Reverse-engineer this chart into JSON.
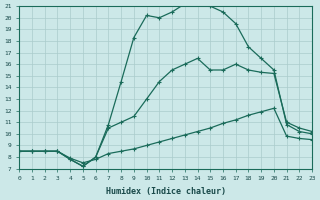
{
  "xlabel": "Humidex (Indice chaleur)",
  "bg_color": "#cce8e8",
  "grid_color": "#aacccc",
  "line_color": "#1a6b5a",
  "xlim": [
    0,
    23
  ],
  "ylim": [
    7,
    21
  ],
  "xtick_vals": [
    0,
    1,
    2,
    3,
    4,
    5,
    6,
    7,
    8,
    9,
    10,
    11,
    12,
    13,
    14,
    15,
    16,
    17,
    18,
    19,
    20,
    21,
    22,
    23
  ],
  "ytick_vals": [
    7,
    8,
    9,
    10,
    11,
    12,
    13,
    14,
    15,
    16,
    17,
    18,
    19,
    20,
    21
  ],
  "curve_upper_x": [
    0,
    1,
    2,
    3,
    4,
    5,
    6,
    7,
    8,
    9,
    10,
    11,
    12,
    13,
    14,
    15,
    16,
    17,
    18,
    19,
    20,
    21,
    22,
    23
  ],
  "curve_upper_y": [
    8.5,
    8.5,
    8.5,
    8.5,
    7.8,
    7.2,
    8.0,
    10.8,
    14.5,
    18.3,
    20.2,
    20.0,
    20.5,
    21.2,
    21.5,
    21.0,
    20.5,
    19.5,
    17.5,
    16.5,
    15.5,
    10.8,
    10.2,
    10.0
  ],
  "curve_mid_x": [
    0,
    1,
    2,
    3,
    4,
    5,
    6,
    7,
    8,
    9,
    10,
    11,
    12,
    13,
    14,
    15,
    16,
    17,
    18,
    19,
    20,
    21,
    22,
    23
  ],
  "curve_mid_y": [
    8.5,
    8.5,
    8.5,
    8.5,
    7.8,
    7.2,
    8.0,
    10.5,
    11.0,
    11.5,
    13.0,
    14.5,
    15.5,
    16.0,
    16.5,
    15.5,
    15.5,
    16.0,
    15.5,
    15.3,
    15.2,
    11.0,
    10.5,
    10.2
  ],
  "curve_lower_x": [
    0,
    1,
    2,
    3,
    4,
    5,
    6,
    7,
    8,
    9,
    10,
    11,
    12,
    13,
    14,
    15,
    16,
    17,
    18,
    19,
    20,
    21,
    22,
    23
  ],
  "curve_lower_y": [
    8.5,
    8.5,
    8.5,
    8.5,
    7.9,
    7.5,
    7.8,
    8.3,
    8.5,
    8.7,
    9.0,
    9.3,
    9.6,
    9.9,
    10.2,
    10.5,
    10.9,
    11.2,
    11.6,
    11.9,
    12.2,
    9.8,
    9.6,
    9.5
  ]
}
